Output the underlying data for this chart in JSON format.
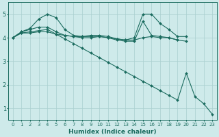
{
  "xlabel": "Humidex (Indice chaleur)",
  "background_color": "#ceeaea",
  "grid_color": "#aacfcf",
  "line_color": "#1a6b5e",
  "xlim": [
    -0.5,
    23.5
  ],
  "ylim": [
    0.5,
    5.5
  ],
  "xticks": [
    0,
    1,
    2,
    3,
    4,
    5,
    6,
    7,
    8,
    9,
    10,
    11,
    12,
    13,
    14,
    15,
    16,
    17,
    18,
    19,
    20,
    21,
    22,
    23
  ],
  "yticks": [
    1,
    2,
    3,
    4,
    5
  ],
  "lines": [
    {
      "x": [
        0,
        1,
        2,
        3,
        4,
        5,
        6,
        7,
        8,
        9,
        10,
        11,
        12,
        13,
        14,
        15,
        16,
        17,
        18,
        19,
        20
      ],
      "y": [
        4.0,
        4.25,
        4.4,
        4.8,
        5.0,
        4.85,
        4.35,
        4.1,
        4.05,
        4.1,
        4.1,
        4.05,
        3.95,
        3.9,
        4.0,
        5.0,
        5.0,
        4.6,
        4.35,
        4.05,
        4.05
      ]
    },
    {
      "x": [
        0,
        1,
        2,
        3,
        4,
        5,
        6,
        7,
        8,
        9,
        10,
        11,
        12,
        13,
        14,
        15,
        16,
        17,
        18,
        19,
        20
      ],
      "y": [
        4.0,
        4.25,
        4.35,
        4.45,
        4.45,
        4.25,
        4.1,
        4.05,
        4.05,
        4.05,
        4.05,
        4.0,
        3.9,
        3.85,
        3.85,
        4.7,
        4.1,
        4.05,
        4.0,
        3.9,
        3.85
      ]
    },
    {
      "x": [
        0,
        1,
        2,
        3,
        4,
        5,
        6,
        7,
        8,
        9,
        10,
        11,
        12,
        13,
        14,
        15,
        16,
        17,
        18,
        19
      ],
      "y": [
        4.0,
        4.2,
        4.2,
        4.25,
        4.25,
        4.15,
        4.1,
        4.05,
        4.0,
        4.0,
        4.05,
        4.0,
        3.95,
        3.9,
        3.9,
        4.0,
        4.05,
        4.0,
        4.0,
        3.9
      ]
    },
    {
      "x": [
        0,
        1,
        2,
        3,
        4,
        5,
        6,
        7,
        8,
        9,
        10,
        11,
        12,
        13,
        14,
        15,
        16,
        17,
        18,
        19,
        20,
        21,
        22,
        23
      ],
      "y": [
        4.0,
        4.2,
        4.25,
        4.3,
        4.35,
        4.15,
        3.95,
        3.75,
        3.55,
        3.35,
        3.15,
        2.95,
        2.75,
        2.55,
        2.35,
        2.15,
        1.95,
        1.75,
        1.55,
        1.35,
        2.5,
        1.5,
        1.2,
        0.75
      ]
    }
  ]
}
